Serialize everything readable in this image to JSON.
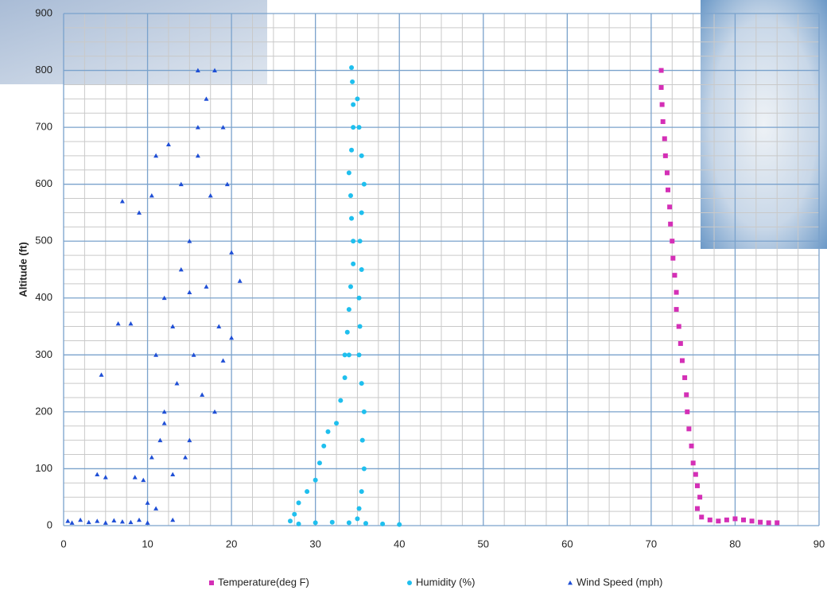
{
  "chart_data": {
    "type": "scatter",
    "y_label": "Altitude (ft)",
    "xlim": [
      0,
      90
    ],
    "xticks": [
      0,
      10,
      20,
      30,
      40,
      50,
      60,
      70,
      80,
      90
    ],
    "ylim": [
      0,
      900
    ],
    "yticks": [
      0,
      100,
      200,
      300,
      400,
      500,
      600,
      700,
      800,
      900
    ],
    "grid": true,
    "legend": "bottom",
    "series": [
      {
        "name": "Temperature(deg F)",
        "color": "#d42fb6",
        "marker": "square",
        "x": [
          85,
          84,
          83,
          82,
          81,
          80,
          79,
          78,
          77,
          76,
          75.5,
          75.8,
          75.5,
          75.3,
          75,
          74.8,
          74.5,
          74.3,
          74.2,
          74,
          73.7,
          73.5,
          73.3,
          73,
          73,
          72.8,
          72.6,
          72.5,
          72.3,
          72.2,
          72,
          71.9,
          71.7,
          71.6,
          71.4,
          71.3,
          71.2,
          71.2
        ],
        "y": [
          5,
          5,
          6,
          8,
          10,
          12,
          10,
          8,
          10,
          15,
          30,
          50,
          70,
          90,
          110,
          140,
          170,
          200,
          230,
          260,
          290,
          320,
          350,
          380,
          410,
          440,
          470,
          500,
          530,
          560,
          590,
          620,
          650,
          680,
          710,
          740,
          770,
          800
        ]
      },
      {
        "name": "Humidity (%)",
        "color": "#1fbfee",
        "marker": "circle",
        "x": [
          40,
          38,
          36,
          34,
          32,
          30,
          28,
          27,
          27.5,
          28,
          29,
          30,
          30.5,
          31,
          31.5,
          32.5,
          33,
          33.5,
          33.5,
          33.8,
          34,
          34.2,
          34.5,
          34.5,
          34.3,
          34.2,
          34,
          34.3,
          34.5,
          34.5,
          34.4,
          34.3,
          35,
          35.2,
          35.5,
          35.8,
          35.5,
          35.3,
          35.5,
          35.2,
          35.3,
          35.2,
          35.5,
          35.8,
          35.6,
          35.8,
          35.5,
          35.2,
          35,
          34
        ],
        "y": [
          2,
          3,
          4,
          5,
          6,
          5,
          3,
          8,
          20,
          40,
          60,
          80,
          110,
          140,
          165,
          180,
          220,
          260,
          300,
          340,
          380,
          420,
          460,
          500,
          540,
          580,
          620,
          660,
          700,
          740,
          780,
          805,
          750,
          700,
          650,
          600,
          550,
          500,
          450,
          400,
          350,
          300,
          250,
          200,
          150,
          100,
          60,
          30,
          12,
          300
        ]
      },
      {
        "name": "Wind Speed (mph)",
        "color": "#1f4fd6",
        "marker": "triangle",
        "x": [
          0.5,
          1,
          2,
          3,
          4,
          5,
          6,
          7,
          8,
          9,
          10,
          4.5,
          4,
          5,
          6.5,
          7,
          8,
          8.5,
          9,
          9.5,
          10,
          10.5,
          10.5,
          11,
          11,
          11.5,
          12,
          12,
          12.5,
          13,
          13,
          13.5,
          14,
          14,
          14.5,
          15,
          15,
          15.5,
          16,
          16,
          16.5,
          17,
          17,
          17.5,
          18,
          18,
          18.5,
          19,
          19.5,
          20,
          20,
          21,
          19,
          16,
          15,
          13,
          11,
          12
        ],
        "y": [
          8,
          5,
          10,
          6,
          8,
          5,
          9,
          7,
          6,
          10,
          5,
          265,
          90,
          85,
          355,
          570,
          355,
          85,
          550,
          80,
          40,
          580,
          120,
          300,
          650,
          150,
          400,
          200,
          670,
          350,
          90,
          250,
          600,
          450,
          120,
          500,
          410,
          300,
          800,
          650,
          230,
          420,
          750,
          580,
          800,
          200,
          350,
          700,
          600,
          480,
          330,
          430,
          290,
          700,
          150,
          10,
          30,
          180
        ]
      }
    ]
  }
}
